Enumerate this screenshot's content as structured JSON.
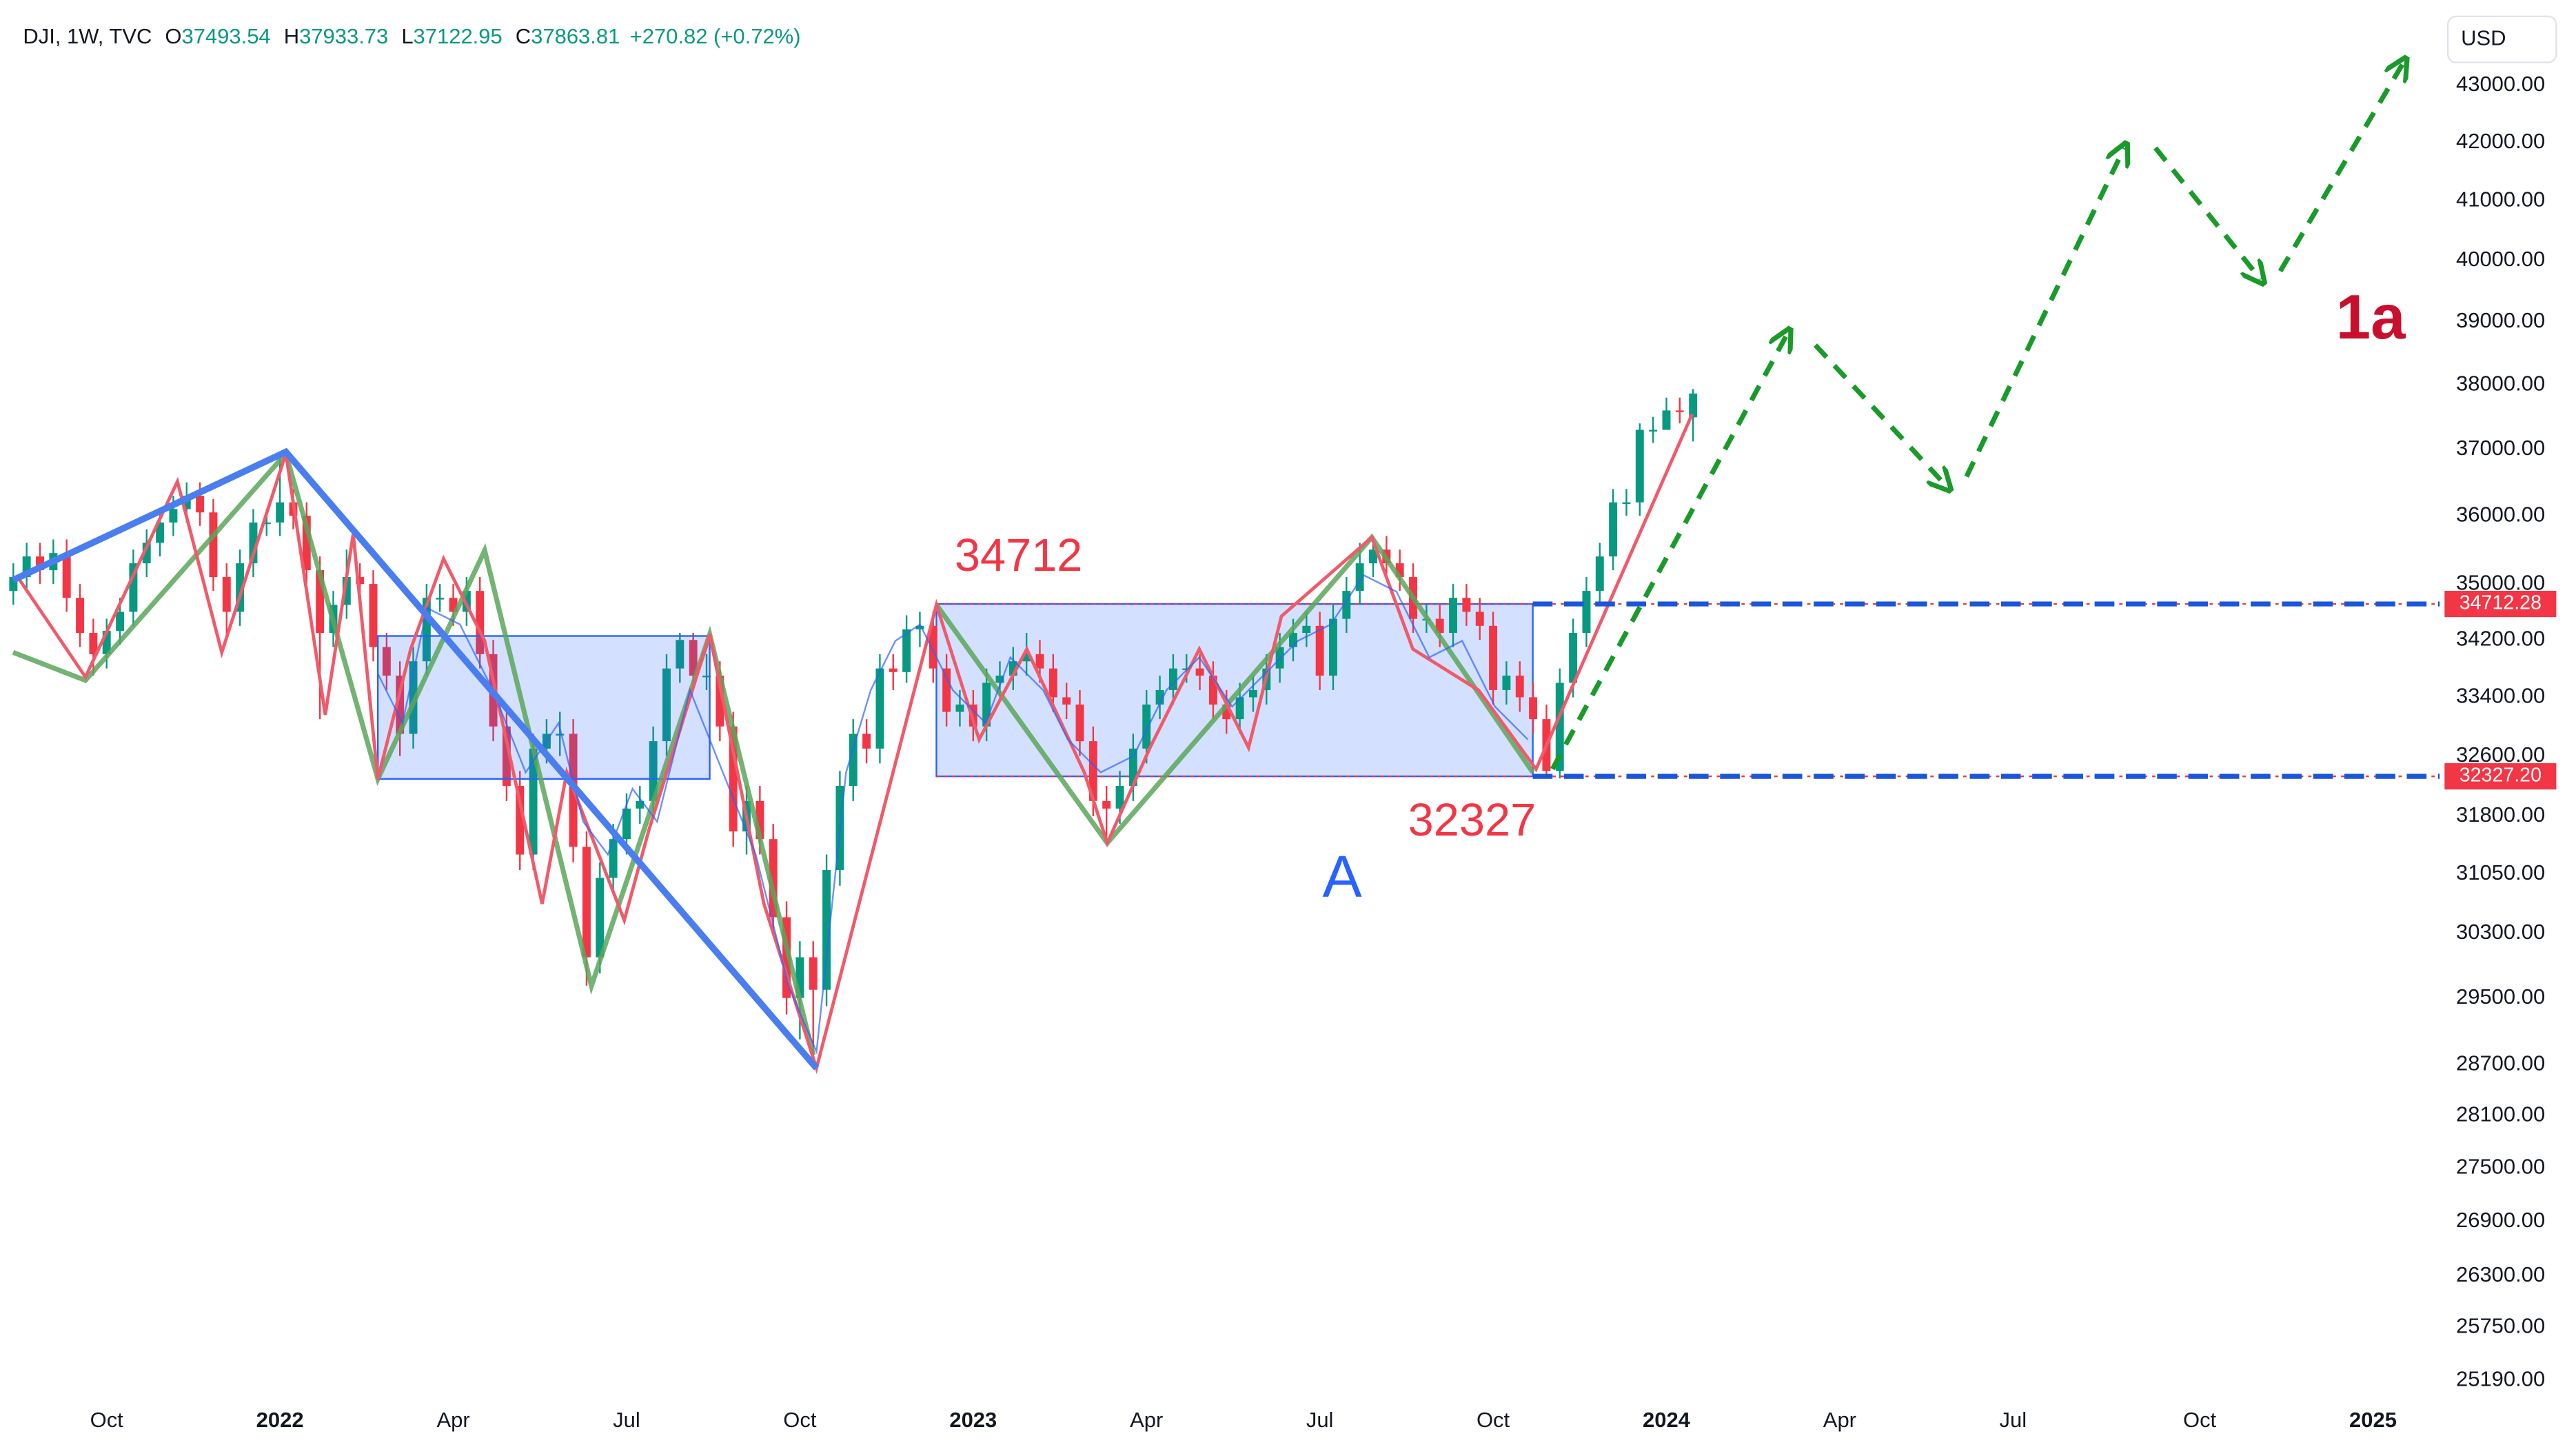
{
  "chart_data": {
    "type": "candlestick",
    "title": "DJI, 1W, TVC",
    "ohlc_letters": [
      "O",
      "H",
      "L",
      "C"
    ],
    "change": "+270.82 (+0.72%)",
    "currency": "USD",
    "up_color": "#089981",
    "down_color": "#f23645",
    "log_scale": true,
    "grid": false,
    "open": [
      34900,
      35100,
      35400,
      35200,
      35450,
      34800,
      34300,
      34000,
      34330,
      34600,
      35300,
      35600,
      35900,
      36100,
      36300,
      36050,
      35100,
      34600,
      35300,
      35900,
      35900,
      36200,
      36000,
      35200,
      34300,
      34700,
      35100,
      35000,
      34100,
      33700,
      32900,
      33900,
      34800,
      34800,
      34600,
      34900,
      34000,
      33000,
      32200,
      31300,
      32700,
      32900,
      32900,
      31400,
      30000,
      31000,
      31500,
      31900,
      32000,
      32800,
      33800,
      34200,
      33700,
      33700,
      33000,
      31600,
      32000,
      31500,
      30500,
      29500,
      30000,
      29600,
      31100,
      32200,
      32900,
      32700,
      33800,
      33750,
      34350,
      34400,
      33800,
      33200,
      33300,
      33000,
      33600,
      33700,
      33900,
      34000,
      33800,
      33400,
      33300,
      32800,
      32000,
      31900,
      32200,
      32700,
      33300,
      33500,
      33800,
      33800,
      33700,
      33300,
      33100,
      33400,
      33500,
      33800,
      34100,
      34300,
      34400,
      33700,
      34500,
      34900,
      35300,
      35500,
      35300,
      35100,
      34500,
      34500,
      34300,
      34800,
      34600,
      34400,
      33500,
      33700,
      33400,
      33100,
      32400,
      33600,
      34300,
      34900,
      35400,
      36200,
      36200,
      37300,
      37300,
      37600,
      37493.54
    ],
    "high": [
      35300,
      35600,
      35600,
      35650,
      35650,
      35000,
      34500,
      34500,
      34800,
      35500,
      35800,
      36100,
      36300,
      36500,
      36500,
      36250,
      35300,
      35500,
      36100,
      36100,
      36950,
      36400,
      36200,
      35400,
      34900,
      35500,
      35300,
      35200,
      34300,
      33900,
      34100,
      35000,
      35000,
      35000,
      35100,
      35100,
      34200,
      33200,
      32400,
      32900,
      33100,
      33200,
      33100,
      31600,
      31200,
      31700,
      32100,
      32200,
      33000,
      34000,
      34300,
      34300,
      34000,
      33900,
      33200,
      32200,
      32200,
      31700,
      30700,
      30200,
      30200,
      31300,
      32400,
      33100,
      33100,
      34000,
      34000,
      34550,
      34600,
      34600,
      34000,
      33500,
      33500,
      33800,
      33900,
      34100,
      34300,
      34200,
      34000,
      33600,
      33500,
      33000,
      32200,
      32400,
      32900,
      33500,
      33700,
      34000,
      34000,
      34000,
      33900,
      33500,
      33600,
      33700,
      34000,
      34300,
      34500,
      34600,
      34600,
      34700,
      35100,
      35600,
      35700,
      35700,
      35500,
      35300,
      34700,
      34700,
      35000,
      35000,
      34800,
      34600,
      33900,
      33900,
      33600,
      33300,
      33800,
      34500,
      35100,
      35600,
      36400,
      36400,
      37400,
      37500,
      37800,
      37800,
      37933.73
    ],
    "low": [
      34700,
      34900,
      35000,
      35000,
      34600,
      34100,
      33700,
      33800,
      34130,
      34400,
      35100,
      35400,
      35700,
      35900,
      35850,
      34900,
      34200,
      34400,
      35100,
      35700,
      35700,
      35800,
      35000,
      33100,
      34100,
      34500,
      34800,
      33900,
      33500,
      32600,
      32700,
      33700,
      34600,
      34400,
      34400,
      33800,
      32800,
      32000,
      31100,
      31100,
      32500,
      32600,
      31200,
      29650,
      29800,
      30800,
      31300,
      31700,
      31800,
      32600,
      33600,
      33500,
      33500,
      32800,
      31400,
      31300,
      31300,
      30300,
      29300,
      29000,
      28700,
      29400,
      30900,
      32000,
      32500,
      32500,
      33500,
      33600,
      34100,
      33600,
      33000,
      33000,
      32800,
      32800,
      33400,
      33500,
      33700,
      33600,
      33200,
      33100,
      32600,
      31800,
      31450,
      31700,
      32000,
      32500,
      33100,
      33300,
      33600,
      33500,
      33100,
      32900,
      32900,
      33200,
      33300,
      33600,
      33900,
      34100,
      33500,
      33500,
      34300,
      34700,
      35100,
      35100,
      34900,
      34300,
      34300,
      34100,
      34100,
      34400,
      34200,
      33300,
      33300,
      33200,
      32900,
      32300,
      32300,
      33400,
      34100,
      34700,
      35200,
      36000,
      36000,
      37100,
      37300,
      37400,
      37122.95
    ],
    "close": [
      35100,
      35400,
      35200,
      35450,
      34800,
      34300,
      34000,
      34330,
      34600,
      35300,
      35600,
      35900,
      36100,
      36300,
      36050,
      35100,
      34600,
      35300,
      35900,
      35900,
      36200,
      36000,
      35200,
      34300,
      34700,
      35100,
      35000,
      34100,
      33700,
      32900,
      33900,
      34800,
      34800,
      34600,
      34900,
      34000,
      33000,
      32200,
      31300,
      32700,
      32900,
      32900,
      31400,
      30000,
      31000,
      31500,
      31900,
      32000,
      32800,
      33800,
      34200,
      33700,
      33700,
      33000,
      31600,
      32000,
      31500,
      30500,
      29500,
      30000,
      29600,
      31100,
      32200,
      32900,
      32700,
      33800,
      33750,
      34350,
      34400,
      33800,
      33200,
      33300,
      33000,
      33600,
      33700,
      33900,
      34000,
      33800,
      33400,
      33300,
      32800,
      32000,
      31900,
      32200,
      32700,
      33300,
      33500,
      33800,
      33800,
      33700,
      33300,
      33100,
      33400,
      33500,
      33800,
      34100,
      34300,
      34400,
      33700,
      34500,
      34900,
      35300,
      35500,
      35300,
      35100,
      34500,
      34500,
      34300,
      34800,
      34600,
      34400,
      33500,
      33700,
      33400,
      33100,
      32400,
      33600,
      34300,
      34900,
      35400,
      36200,
      36200,
      37300,
      37300,
      37600,
      37593,
      37863.81
    ],
    "xlim": [
      -1,
      182
    ],
    "xticks": [
      {
        "value": 7,
        "label": "Oct"
      },
      {
        "value": 20,
        "label": "2022"
      },
      {
        "value": 33,
        "label": "Apr"
      },
      {
        "value": 46,
        "label": "Jul"
      },
      {
        "value": 59,
        "label": "Oct"
      },
      {
        "value": 72,
        "label": "2023"
      },
      {
        "value": 85,
        "label": "Apr"
      },
      {
        "value": 98,
        "label": "Jul"
      },
      {
        "value": 111,
        "label": "Oct"
      },
      {
        "value": 124,
        "label": "2024"
      },
      {
        "value": 137,
        "label": "Apr"
      },
      {
        "value": 150,
        "label": "Jul"
      },
      {
        "value": 164,
        "label": "Oct"
      },
      {
        "value": 177,
        "label": "2025"
      }
    ],
    "ylim": [
      25020,
      44545
    ],
    "yticks": [
      {
        "value": 43000,
        "label": "43000.00"
      },
      {
        "value": 42000,
        "label": "42000.00"
      },
      {
        "value": 41000,
        "label": "41000.00"
      },
      {
        "value": 40000,
        "label": "40000.00"
      },
      {
        "value": 39000,
        "label": "39000.00"
      },
      {
        "value": 38000,
        "label": "38000.00"
      },
      {
        "value": 37000,
        "label": "37000.00"
      },
      {
        "value": 36000,
        "label": "36000.00"
      },
      {
        "value": 35000,
        "label": "35000.00"
      },
      {
        "value": 34200,
        "label": "34200.00"
      },
      {
        "value": 33400,
        "label": "33400.00"
      },
      {
        "value": 32600,
        "label": "32600.00"
      },
      {
        "value": 31800,
        "label": "31800.00"
      },
      {
        "value": 31050,
        "label": "31050.00"
      },
      {
        "value": 30300,
        "label": "30300.00"
      },
      {
        "value": 29500,
        "label": "29500.00"
      },
      {
        "value": 28700,
        "label": "28700.00"
      },
      {
        "value": 28100,
        "label": "28100.00"
      },
      {
        "value": 27500,
        "label": "27500.00"
      },
      {
        "value": 26900,
        "label": "26900.00"
      },
      {
        "value": 26300,
        "label": "26300.00"
      },
      {
        "value": 25750,
        "label": "25750.00"
      },
      {
        "value": 25190,
        "label": "25190.00"
      }
    ],
    "levels": [
      34712.28,
      {
        "value": 32327.2,
        "label": "32327.20"
      }
    ],
    "annotations": [
      "34712",
      "32327",
      "A",
      "1a"
    ]
  }
}
